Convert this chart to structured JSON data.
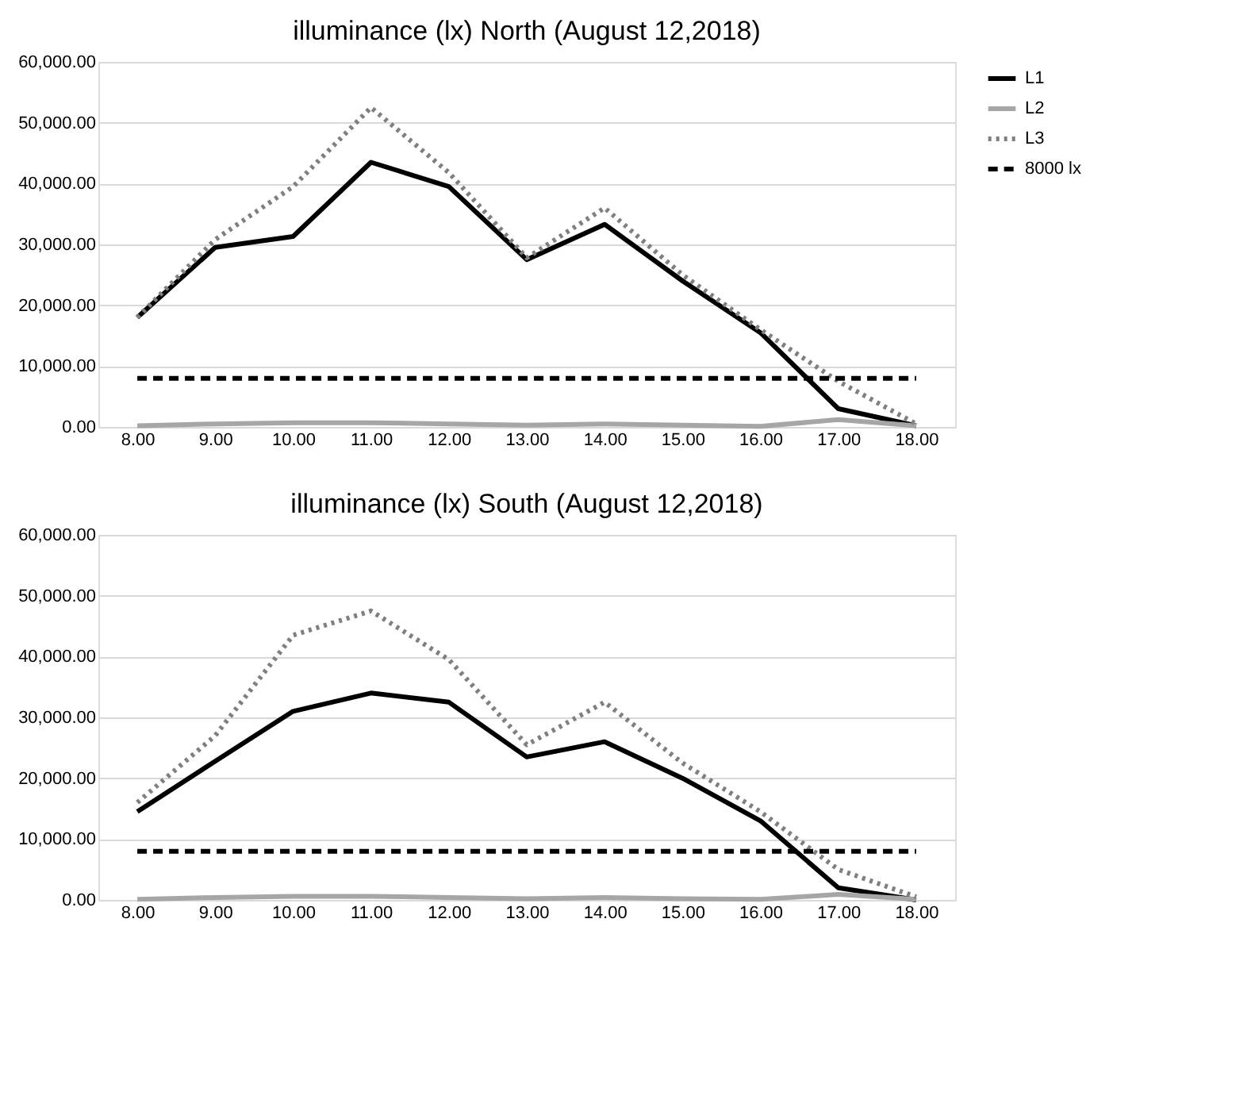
{
  "chart_data": [
    {
      "type": "line",
      "title": "illuminance (lx) North (August 12,2018)",
      "categories": [
        "8.00",
        "9.00",
        "10.00",
        "11.00",
        "12.00",
        "13.00",
        "14.00",
        "15.00",
        "16.00",
        "17.00",
        "18.00"
      ],
      "ylim": [
        0,
        60000
      ],
      "yticks": [
        {
          "value": 0,
          "label": "0.00"
        },
        {
          "value": 10000,
          "label": "10,000.00"
        },
        {
          "value": 20000,
          "label": "20,000.00"
        },
        {
          "value": 30000,
          "label": "30,000.00"
        },
        {
          "value": 40000,
          "label": "40,000.00"
        },
        {
          "value": 50000,
          "label": "50,000.00"
        },
        {
          "value": 60000,
          "label": "60,000.00"
        }
      ],
      "grid": "y",
      "legend": "right",
      "series": [
        {
          "name": "L1",
          "color": "#000000",
          "line_style": "solid",
          "values": [
            18000,
            29500,
            31300,
            43500,
            39500,
            27500,
            33300,
            24000,
            15500,
            3000,
            200
          ]
        },
        {
          "name": "L2",
          "color": "#a6a6a6",
          "line_style": "solid",
          "values": [
            200,
            500,
            700,
            700,
            500,
            300,
            500,
            300,
            100,
            1200,
            200
          ]
        },
        {
          "name": "L3",
          "color": "#7f7f7f",
          "line_style": "dotted",
          "values": [
            18000,
            30800,
            39500,
            52500,
            41800,
            27800,
            36000,
            25000,
            16000,
            7500,
            500
          ]
        },
        {
          "name": "8000 lx",
          "color": "#000000",
          "line_style": "dashed",
          "values": [
            8000,
            8000,
            8000,
            8000,
            8000,
            8000,
            8000,
            8000,
            8000,
            8000,
            8000
          ]
        }
      ]
    },
    {
      "type": "line",
      "title": "illuminance (lx) South (August 12,2018)",
      "categories": [
        "8.00",
        "9.00",
        "10.00",
        "11.00",
        "12.00",
        "13.00",
        "14.00",
        "15.00",
        "16.00",
        "17.00",
        "18.00"
      ],
      "ylim": [
        0,
        60000
      ],
      "yticks": [
        {
          "value": 0,
          "label": "0.00"
        },
        {
          "value": 10000,
          "label": "10,000.00"
        },
        {
          "value": 20000,
          "label": "20,000.00"
        },
        {
          "value": 30000,
          "label": "30,000.00"
        },
        {
          "value": 40000,
          "label": "40,000.00"
        },
        {
          "value": 50000,
          "label": "50,000.00"
        },
        {
          "value": 60000,
          "label": "60,000.00"
        }
      ],
      "grid": "y",
      "legend": "right",
      "series": [
        {
          "name": "L1",
          "color": "#000000",
          "line_style": "solid",
          "values": [
            14500,
            22800,
            31000,
            34000,
            32500,
            23500,
            26000,
            20000,
            13000,
            2000,
            0
          ]
        },
        {
          "name": "L2",
          "color": "#a6a6a6",
          "line_style": "solid",
          "values": [
            100,
            400,
            600,
            600,
            400,
            200,
            400,
            200,
            100,
            900,
            100
          ]
        },
        {
          "name": "L3",
          "color": "#7f7f7f",
          "line_style": "dotted",
          "values": [
            16000,
            27000,
            43500,
            47500,
            39500,
            25500,
            32500,
            22500,
            14500,
            5000,
            500
          ]
        },
        {
          "name": "8000 lx",
          "color": "#000000",
          "line_style": "dashed",
          "values": [
            8000,
            8000,
            8000,
            8000,
            8000,
            8000,
            8000,
            8000,
            8000,
            8000,
            8000
          ]
        }
      ]
    }
  ]
}
